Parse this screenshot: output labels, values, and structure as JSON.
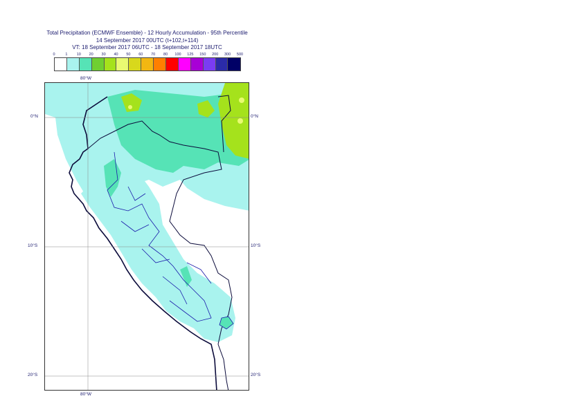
{
  "title": {
    "line1": "Total Precipitation (ECMWF Ensemble) - 12 Hourly Accumulation - 95th Percentile",
    "line2": "14 September 2017 00UTC (t+102,t+114)",
    "line3": "VT: 18 September 2017 06UTC - 18 September 2017 18UTC"
  },
  "legend": {
    "ticks": [
      "0",
      "1",
      "10",
      "20",
      "30",
      "40",
      "50",
      "60",
      "70",
      "80",
      "100",
      "125",
      "150",
      "200",
      "300",
      "500"
    ],
    "colors": [
      "#ffffff",
      "#a9f3ee",
      "#56e3b6",
      "#6fcf32",
      "#a5e21c",
      "#e9fa72",
      "#d8d81c",
      "#f2b712",
      "#ff7f00",
      "#ff0000",
      "#ff00ff",
      "#a800d6",
      "#7a3cf2",
      "#2b2ba8",
      "#000066"
    ]
  },
  "axes": {
    "lon_top": "80°W",
    "lon_bottom": "80°W",
    "lat_labels": [
      "0°N",
      "10°S",
      "20°S"
    ]
  },
  "map": {
    "ocean_color": "#ffffff",
    "light_precip": "#a9f3ee",
    "medium_precip": "#56e3b6",
    "heavy_precip": "#a5e21c",
    "coast_color": "#0a0a3a",
    "border_color": "#1a1aaa"
  }
}
